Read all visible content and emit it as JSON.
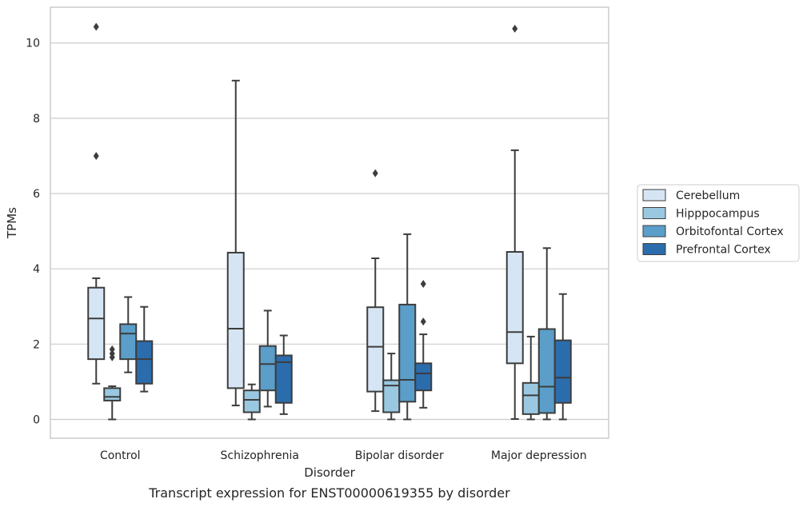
{
  "chart_data": {
    "type": "box",
    "caption": "Transcript expression for ENST00000619355 by disorder",
    "xlabel": "Disorder",
    "ylabel": "TPMs",
    "ylim": [
      -0.5,
      10.95
    ],
    "yticks": [
      0,
      2,
      4,
      6,
      8,
      10
    ],
    "grid": "horizontal",
    "legend_position": "right",
    "categories": [
      "Control",
      "Schizophrenia",
      "Bipolar disorder",
      "Major depression"
    ],
    "series": [
      {
        "name": "Cerebellum",
        "color": "#d6e5f3",
        "boxes": [
          {
            "whislo": 0.95,
            "q1": 1.6,
            "med": 2.68,
            "q3": 3.5,
            "whishi": 3.75,
            "fliers": [
              7.0,
              10.43
            ]
          },
          {
            "whislo": 0.37,
            "q1": 0.83,
            "med": 2.41,
            "q3": 4.43,
            "whishi": 9.0,
            "fliers": []
          },
          {
            "whislo": 0.22,
            "q1": 0.74,
            "med": 1.93,
            "q3": 2.98,
            "whishi": 4.28,
            "fliers": [
              6.54
            ]
          },
          {
            "whislo": 0.01,
            "q1": 1.49,
            "med": 2.32,
            "q3": 4.45,
            "whishi": 7.15,
            "fliers": [
              10.38
            ]
          }
        ]
      },
      {
        "name": "Hipppocampus",
        "color": "#9ac8e0",
        "boxes": [
          {
            "whislo": 0.0,
            "q1": 0.5,
            "med": 0.6,
            "q3": 0.83,
            "whishi": 0.88,
            "fliers": [
              1.65,
              1.75,
              1.86
            ]
          },
          {
            "whislo": 0.0,
            "q1": 0.19,
            "med": 0.52,
            "q3": 0.77,
            "whishi": 0.93,
            "fliers": []
          },
          {
            "whislo": 0.0,
            "q1": 0.19,
            "med": 0.9,
            "q3": 1.04,
            "whishi": 1.75,
            "fliers": []
          },
          {
            "whislo": 0.0,
            "q1": 0.14,
            "med": 0.64,
            "q3": 0.97,
            "whishi": 2.2,
            "fliers": []
          }
        ]
      },
      {
        "name": "Orbitofontal Cortex",
        "color": "#5a9ec9",
        "boxes": [
          {
            "whislo": 1.25,
            "q1": 1.6,
            "med": 2.28,
            "q3": 2.53,
            "whishi": 3.25,
            "fliers": []
          },
          {
            "whislo": 0.34,
            "q1": 0.77,
            "med": 1.47,
            "q3": 1.95,
            "whishi": 2.89,
            "fliers": []
          },
          {
            "whislo": 0.0,
            "q1": 0.47,
            "med": 1.05,
            "q3": 3.05,
            "whishi": 4.92,
            "fliers": []
          },
          {
            "whislo": 0.0,
            "q1": 0.17,
            "med": 0.87,
            "q3": 2.4,
            "whishi": 4.55,
            "fliers": []
          }
        ]
      },
      {
        "name": "Prefrontal Cortex",
        "color": "#2b6cad",
        "boxes": [
          {
            "whislo": 0.74,
            "q1": 0.95,
            "med": 1.6,
            "q3": 2.08,
            "whishi": 2.99,
            "fliers": []
          },
          {
            "whislo": 0.14,
            "q1": 0.44,
            "med": 1.52,
            "q3": 1.7,
            "whishi": 2.23,
            "fliers": []
          },
          {
            "whislo": 0.31,
            "q1": 0.77,
            "med": 1.22,
            "q3": 1.49,
            "whishi": 2.26,
            "fliers": [
              2.6,
              3.6
            ]
          },
          {
            "whislo": 0.0,
            "q1": 0.44,
            "med": 1.11,
            "q3": 2.1,
            "whishi": 3.33,
            "fliers": []
          }
        ]
      }
    ]
  }
}
